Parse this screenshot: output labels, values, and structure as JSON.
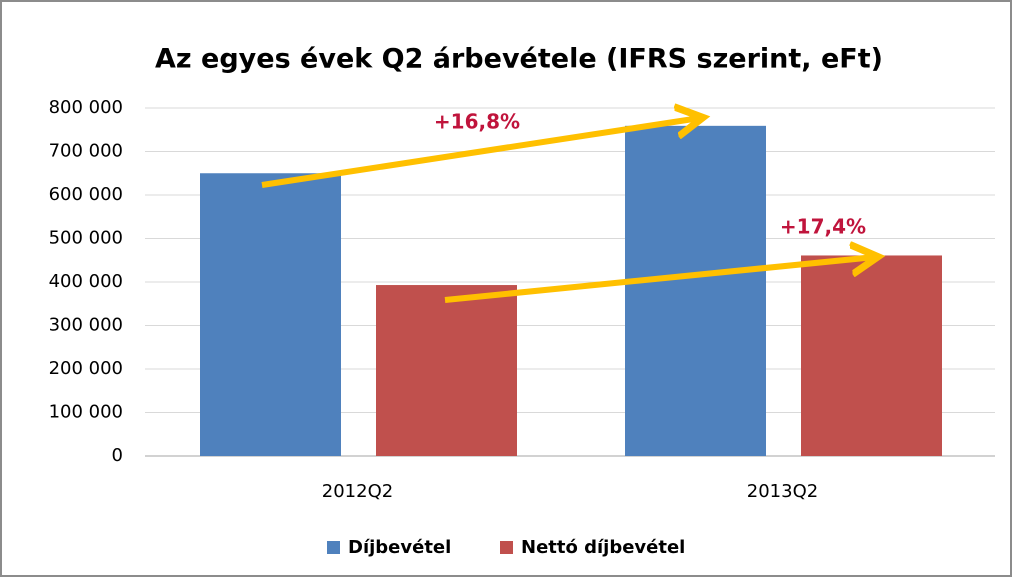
{
  "chart_data": {
    "type": "bar",
    "title": "Az egyes évek Q2 árbevétele (IFRS szerint, eFt)",
    "categories": [
      "2012Q2",
      "2013Q2"
    ],
    "series": [
      {
        "name": "Díjbevétel",
        "color": "#4f81bd",
        "values": [
          650000,
          759000
        ]
      },
      {
        "name": "Nettó díjbevétel",
        "color": "#c0504d",
        "values": [
          393000,
          461000
        ]
      }
    ],
    "annotations": [
      "+16,8%",
      "+17,4%"
    ],
    "ylim": [
      0,
      800000
    ],
    "yticks": [
      0,
      {
        "value": 100000,
        "label": "100 000"
      },
      {
        "value": 200000,
        "label": "200 000"
      },
      {
        "value": 300000,
        "label": "300 000"
      },
      {
        "value": 400000,
        "label": "400 000"
      },
      {
        "value": 500000,
        "label": "500 000"
      },
      {
        "value": 600000,
        "label": "600 000"
      },
      {
        "value": 700000,
        "label": "700 000"
      },
      {
        "value": 800000,
        "label": "800 000"
      }
    ],
    "grid": true,
    "legend": "bottom"
  }
}
